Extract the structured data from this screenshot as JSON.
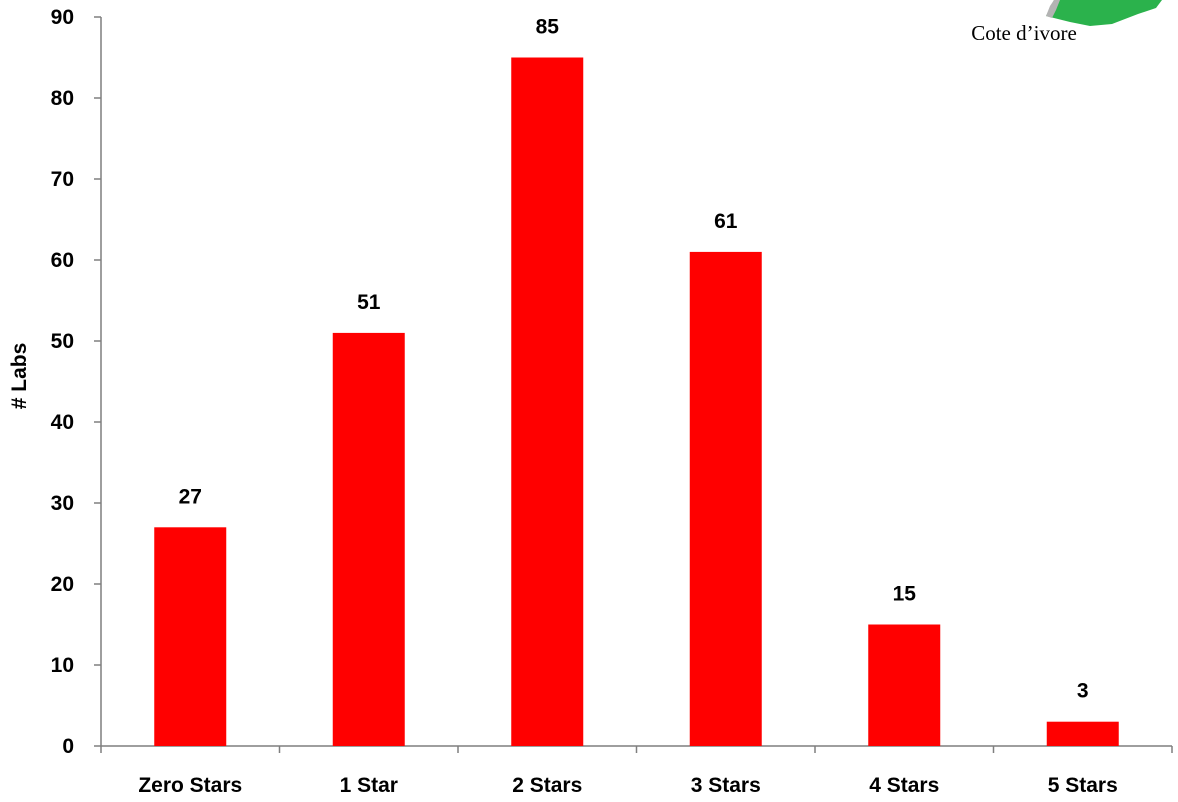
{
  "chart_data": {
    "type": "bar",
    "categories": [
      "Zero Stars",
      "1 Star",
      "2 Stars",
      "3 Stars",
      "4 Stars",
      "5 Stars"
    ],
    "values": [
      27,
      51,
      85,
      61,
      15,
      3
    ],
    "data_labels": [
      "27",
      "51",
      "85",
      "61",
      "15",
      "3"
    ],
    "title": "",
    "xlabel": "",
    "ylabel": "# Labs",
    "ylim": [
      0,
      90
    ],
    "yticks": [
      0,
      10,
      20,
      30,
      40,
      50,
      60,
      70,
      80,
      90
    ],
    "bar_color": "#ff0000",
    "grid": false,
    "legend": "none"
  },
  "map_inset": {
    "caption": "Cote d’ivore",
    "map_color": "#2bb24c",
    "neighbor_color": "#b3b3b3"
  }
}
